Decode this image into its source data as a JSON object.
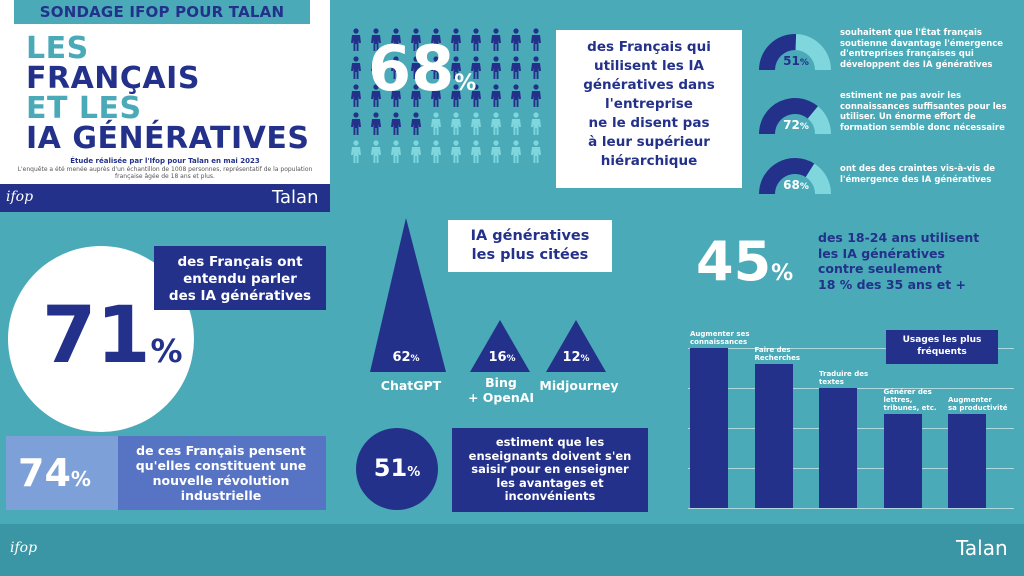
{
  "header": {
    "survey_banner": "SONDAGE IFOP POUR TALAN",
    "title_lines": [
      "LES",
      "FRANÇAIS",
      "ET LES",
      "IA GÉNÉRATIVES"
    ],
    "study": "Étude réalisée par l'Ifop pour Talan en mai 2023",
    "method": "L'enquête a été menée auprès d'un échantillon de 1008 personnes, représentatif de la population française âgée de 18 ans et plus.",
    "logo_left": "ifop",
    "logo_right": "Talan"
  },
  "stat_68": {
    "value": "68",
    "pct": "%",
    "text_lines": [
      "des Français qui",
      "utilisent les IA",
      "génératives dans",
      "l'entreprise",
      "ne le disent pas",
      "à leur supérieur",
      "hiérarchique"
    ],
    "people_total": 50,
    "people_dark": 34
  },
  "gauges": [
    {
      "value": "51",
      "pct": "%",
      "level": 0.51,
      "text": "souhaitent que l'État français soutienne davantage l'émergence d'entreprises françaises qui développent des IA génératives"
    },
    {
      "value": "72",
      "pct": "%",
      "level": 0.72,
      "text": "estiment ne pas avoir les connaissances suffisantes pour les utiliser. Un énorme effort de formation semble donc nécessaire"
    },
    {
      "value": "68",
      "pct": "%",
      "level": 0.68,
      "text": "ont des des craintes vis-à-vis de l'émergence des IA génératives"
    }
  ],
  "stat_71": {
    "value": "71",
    "pct": "%",
    "text_lines": [
      "des Français ont",
      "entendu parler",
      "des IA génératives"
    ]
  },
  "stat_74": {
    "value": "74",
    "pct": "%",
    "text_lines": [
      "de ces Français pensent",
      "qu'elles constituent une",
      "nouvelle révolution",
      "industrielle"
    ]
  },
  "stat_51": {
    "value": "51",
    "pct": "%",
    "text_lines": [
      "estiment que les",
      "enseignants doivent s'en",
      "saisir pour en enseigner",
      "les avantages et",
      "inconvénients"
    ]
  },
  "cited": {
    "title_lines": [
      "IA génératives",
      "les plus citées"
    ],
    "items": [
      {
        "value": "62",
        "pct": "%",
        "name_lines": [
          "ChatGPT"
        ]
      },
      {
        "value": "16",
        "pct": "%",
        "name_lines": [
          "Bing",
          "+ OpenAI"
        ]
      },
      {
        "value": "12",
        "pct": "%",
        "name_lines": [
          "Midjourney"
        ]
      }
    ]
  },
  "stat_45": {
    "value": "45",
    "pct": "%",
    "text_lines": [
      "des 18-24 ans utilisent",
      "les IA génératives",
      "contre seulement",
      "18 % des 35 ans et +"
    ]
  },
  "usage_chart": {
    "title_lines": [
      "Usages les plus",
      "fréquents"
    ],
    "bars": [
      {
        "label_lines": [
          "Augmenter ses",
          "connaissances"
        ],
        "level": 1.0
      },
      {
        "label_lines": [
          "Faire des",
          "Recherches"
        ],
        "level": 0.9
      },
      {
        "label_lines": [
          "Traduire des",
          "textes"
        ],
        "level": 0.75
      },
      {
        "label_lines": [
          "Générer des",
          "lettres,",
          "tribunes, etc."
        ],
        "level": 0.59
      },
      {
        "label_lines": [
          "Augmenter",
          "sa productivité"
        ],
        "level": 0.59
      }
    ]
  },
  "footer": {
    "logo_left": "ifop",
    "logo_right": "Talan"
  },
  "colors": {
    "teal": "#4aaab8",
    "navy": "#23318a",
    "light_teal": "#7fd6dc",
    "mid_blue": "#5773c4",
    "footer": "#3a96a4"
  }
}
